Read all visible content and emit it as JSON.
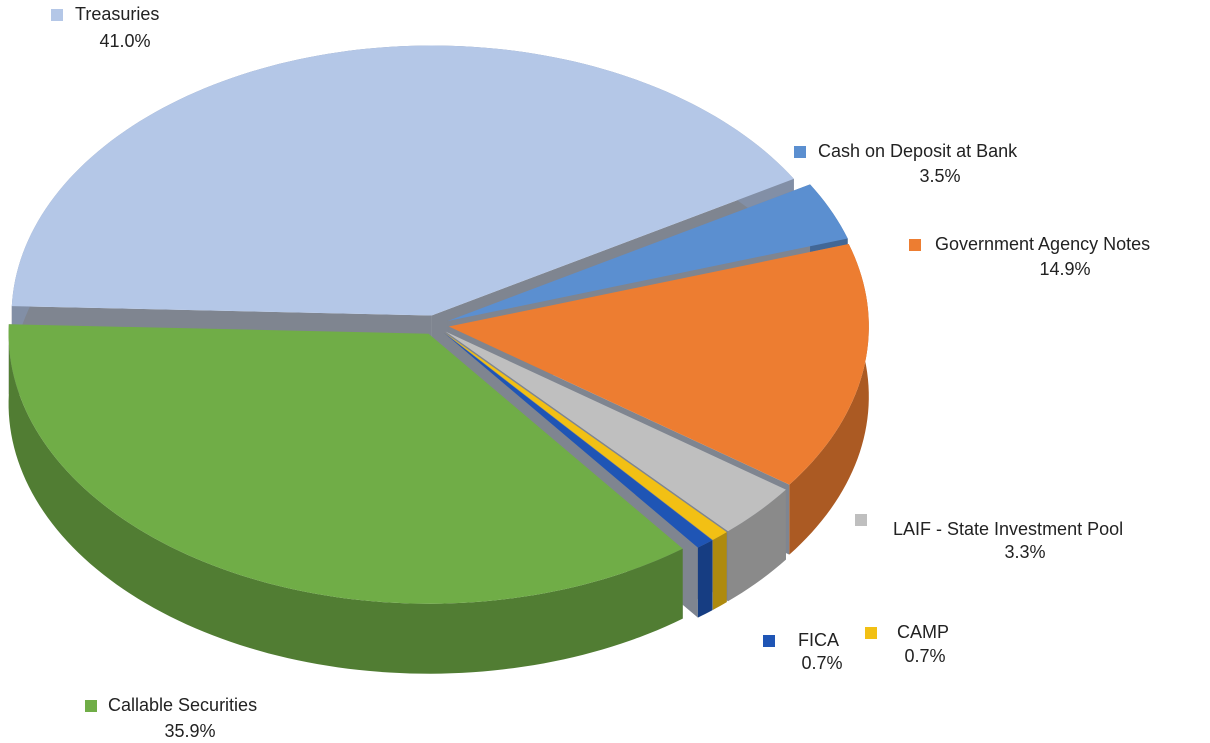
{
  "chart_data": {
    "type": "pie",
    "categories": [
      "Treasuries",
      "Cash on Deposit at Bank",
      "Government Agency Notes",
      "LAIF - State Investment Pool",
      "CAMP",
      "FICA",
      "Callable Securities"
    ],
    "values": [
      41.0,
      3.5,
      14.9,
      3.3,
      0.7,
      0.7,
      35.9
    ],
    "value_labels": [
      "41.0%",
      "3.5%",
      "14.9%",
      "3.3%",
      "0.7%",
      "0.7%",
      "35.9%"
    ],
    "colors": [
      "#b4c7e7",
      "#5b8fd0",
      "#ed7d31",
      "#bfbfbf",
      "#f2c014",
      "#1f55b5",
      "#70ad47"
    ]
  }
}
